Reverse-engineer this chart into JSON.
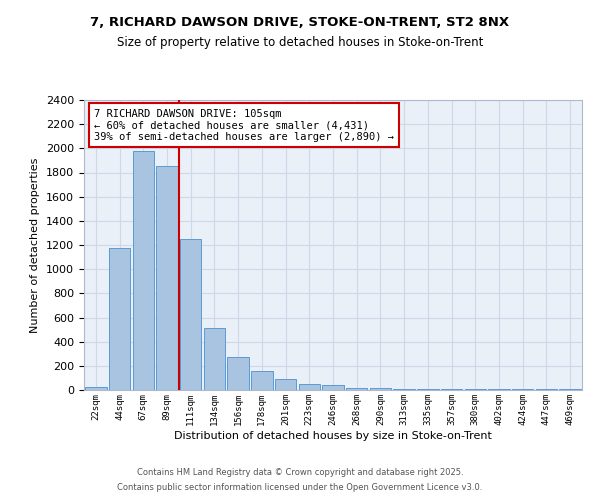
{
  "title_line1": "7, RICHARD DAWSON DRIVE, STOKE-ON-TRENT, ST2 8NX",
  "title_line2": "Size of property relative to detached houses in Stoke-on-Trent",
  "xlabel": "Distribution of detached houses by size in Stoke-on-Trent",
  "ylabel": "Number of detached properties",
  "categories": [
    "22sqm",
    "44sqm",
    "67sqm",
    "89sqm",
    "111sqm",
    "134sqm",
    "156sqm",
    "178sqm",
    "201sqm",
    "223sqm",
    "246sqm",
    "268sqm",
    "290sqm",
    "313sqm",
    "335sqm",
    "357sqm",
    "380sqm",
    "402sqm",
    "424sqm",
    "447sqm",
    "469sqm"
  ],
  "values": [
    25,
    1175,
    1975,
    1850,
    1250,
    510,
    275,
    155,
    90,
    50,
    40,
    20,
    15,
    10,
    10,
    10,
    10,
    8,
    8,
    8,
    8
  ],
  "bar_color": "#a8c4e0",
  "bar_edge_color": "#5b9bd5",
  "annotation_text": "7 RICHARD DAWSON DRIVE: 105sqm\n← 60% of detached houses are smaller (4,431)\n39% of semi-detached houses are larger (2,890) →",
  "annotation_box_color": "#ffffff",
  "annotation_box_edge_color": "#cc0000",
  "vline_color": "#cc0000",
  "ylim": [
    0,
    2400
  ],
  "yticks": [
    0,
    200,
    400,
    600,
    800,
    1000,
    1200,
    1400,
    1600,
    1800,
    2000,
    2200,
    2400
  ],
  "grid_color": "#d0d8e8",
  "background_color": "#eaf0f8",
  "footer_line1": "Contains HM Land Registry data © Crown copyright and database right 2025.",
  "footer_line2": "Contains public sector information licensed under the Open Government Licence v3.0."
}
